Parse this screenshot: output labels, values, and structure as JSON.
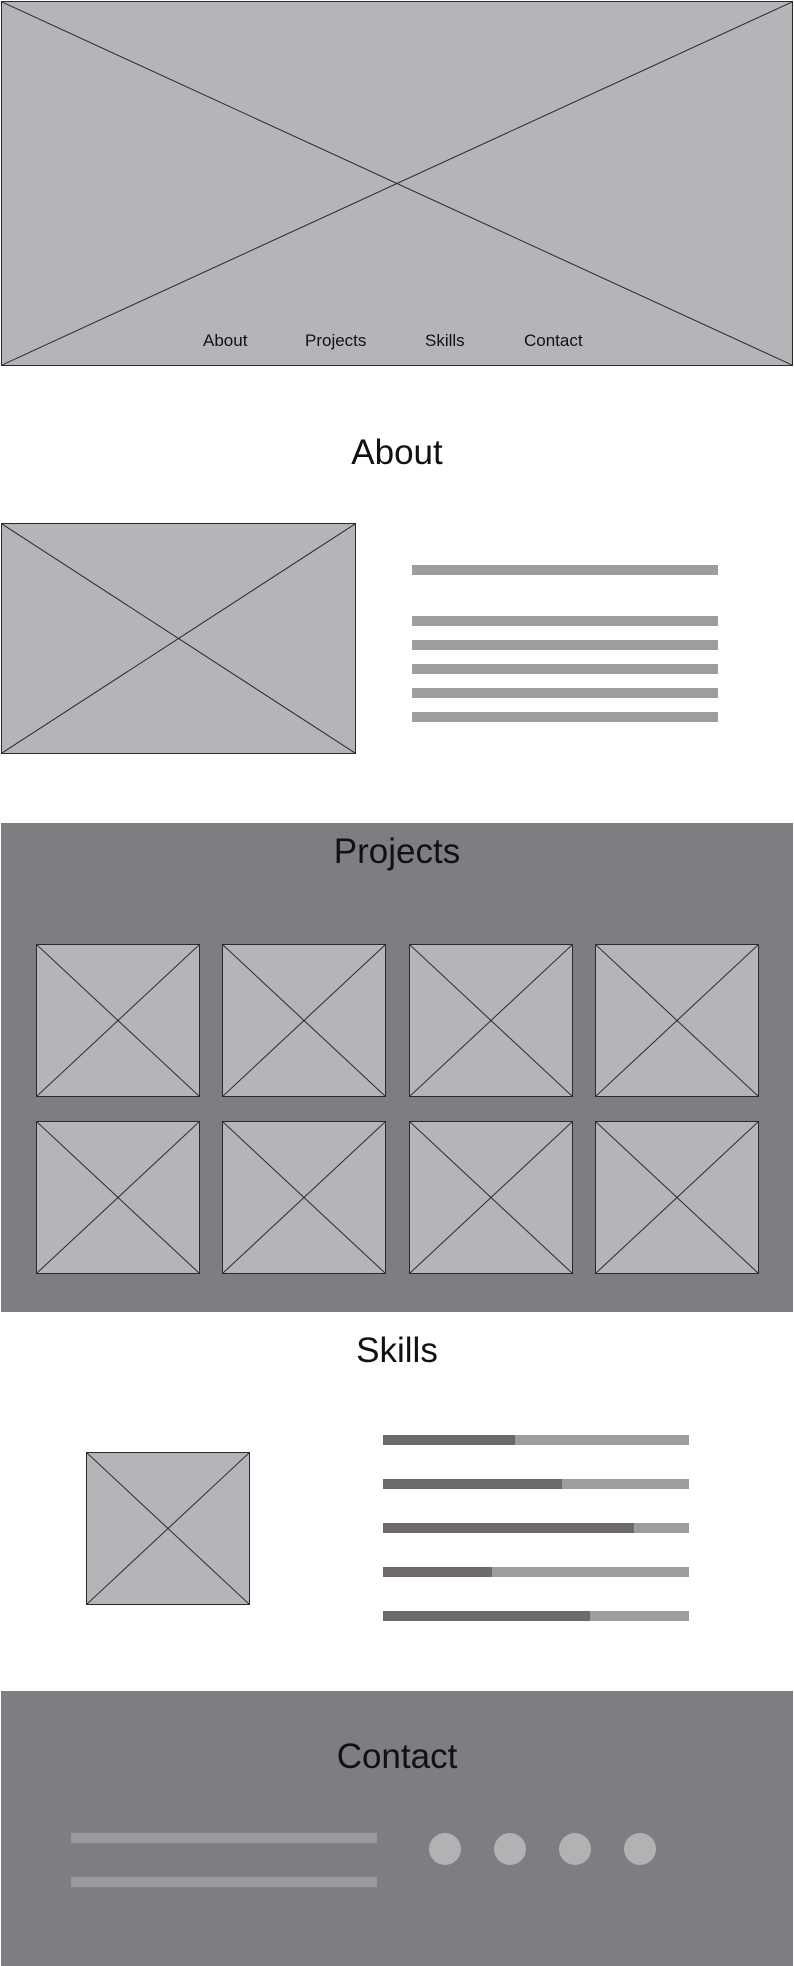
{
  "nav": {
    "items": [
      {
        "label": "About"
      },
      {
        "label": "Projects"
      },
      {
        "label": "Skills"
      },
      {
        "label": "Contact"
      }
    ]
  },
  "about": {
    "title": "About",
    "image": "image-placeholder-icon",
    "text_lines": 6
  },
  "projects": {
    "title": "Projects",
    "thumbnails": 8,
    "thumbnail_icon": "image-placeholder-icon"
  },
  "skills": {
    "title": "Skills",
    "image": "image-placeholder-icon",
    "bars": [
      {
        "level": 0.43
      },
      {
        "level": 0.585
      },
      {
        "level": 0.82
      },
      {
        "level": 0.355
      },
      {
        "level": 0.675
      }
    ]
  },
  "contact": {
    "title": "Contact",
    "text_lines": 2,
    "social_icons": [
      "social-icon-1",
      "social-icon-2",
      "social-icon-3",
      "social-icon-4"
    ]
  },
  "colors": {
    "placeholder": "#b4b5b8",
    "band": "#7d7e82",
    "text_line": "#9d9d9f",
    "skill_fill": "#6e6a6c",
    "social_dot": "#b2b2b5"
  }
}
